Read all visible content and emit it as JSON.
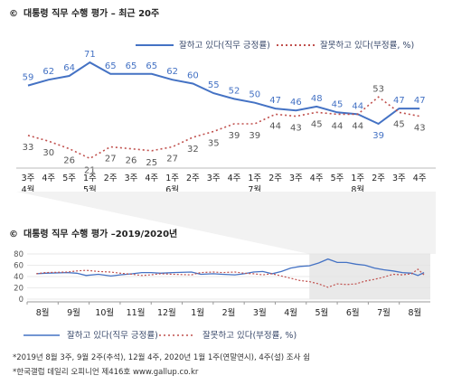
{
  "chart_data": [
    {
      "type": "line",
      "title": "대통령 직무 수행 평가 – 최근 20주",
      "title_marker": "©",
      "x": [
        "3주|4월",
        "4주",
        "5주",
        "1주|5월",
        "2주",
        "3주",
        "4주",
        "1주|6월",
        "2주",
        "3주",
        "4주",
        "1주|7월",
        "2주",
        "3주",
        "4주",
        "5주",
        "1주|8월",
        "2주",
        "3주",
        "4주"
      ],
      "series": [
        {
          "name": "잘하고 있다(직무 긍정률)",
          "color": "#4472c4",
          "style": "solid",
          "values": [
            59,
            62,
            64,
            71,
            65,
            65,
            65,
            62,
            60,
            55,
            52,
            50,
            47,
            46,
            48,
            45,
            44,
            39,
            47,
            47
          ]
        },
        {
          "name": "잘못하고 있다(부정률, %)",
          "color": "#c0504d",
          "style": "dotted",
          "values": [
            33,
            30,
            26,
            21,
            27,
            26,
            25,
            27,
            32,
            35,
            39,
            39,
            44,
            43,
            45,
            44,
            44,
            53,
            45,
            43
          ]
        }
      ],
      "ylim": [
        15,
        80
      ]
    },
    {
      "type": "line",
      "title": "대통령 직무 수행 평가 –2019/2020년",
      "title_marker": "©",
      "y_ticks": [
        0,
        20,
        40,
        60,
        80
      ],
      "ylim": [
        0,
        80
      ],
      "x_labels": [
        "8월",
        "9월",
        "10월",
        "11월",
        "12월",
        "1월",
        "2월",
        "3월",
        "4월",
        "5월",
        "6월",
        "7월",
        "8월"
      ],
      "highlight_region": "last 20 weeks",
      "series": [
        {
          "name": "잘하고 있다(직무 긍정률)",
          "color": "#4472c4",
          "style": "solid",
          "x": [
            0.3,
            0.6,
            1.3,
            1.6,
            1.9,
            2.3,
            2.7,
            3.0,
            3.4,
            3.7,
            4.0,
            4.3,
            4.7,
            5.3,
            5.6,
            6.0,
            6.3,
            6.7,
            7.0,
            7.3,
            7.6,
            7.9,
            8.2,
            8.5,
            8.8,
            9.1,
            9.4,
            9.7,
            10.0,
            10.3,
            10.6,
            10.9,
            11.2,
            11.5,
            11.8,
            12.1,
            12.4,
            12.6,
            12.8
          ],
          "values": [
            45,
            46,
            47,
            46,
            42,
            44,
            41,
            43,
            45,
            47,
            47,
            46,
            47,
            48,
            44,
            45,
            44,
            43,
            45,
            48,
            49,
            45,
            49,
            55,
            58,
            59,
            64,
            71,
            65,
            65,
            62,
            60,
            55,
            52,
            50,
            47,
            46,
            42,
            47
          ]
        },
        {
          "name": "잘못하고 있다(부정률, %)",
          "color": "#c0504d",
          "style": "dotted",
          "x": [
            0.3,
            0.6,
            1.3,
            1.6,
            1.9,
            2.3,
            2.7,
            3.0,
            3.4,
            3.7,
            4.0,
            4.3,
            4.7,
            5.3,
            5.6,
            6.0,
            6.3,
            6.7,
            7.0,
            7.3,
            7.6,
            7.9,
            8.2,
            8.5,
            8.8,
            9.1,
            9.4,
            9.7,
            10.0,
            10.3,
            10.6,
            10.9,
            11.2,
            11.5,
            11.8,
            12.1,
            12.4,
            12.6,
            12.8
          ],
          "values": [
            45,
            47,
            48,
            50,
            51,
            49,
            48,
            46,
            44,
            42,
            43,
            45,
            44,
            43,
            47,
            48,
            47,
            48,
            46,
            45,
            43,
            45,
            41,
            37,
            33,
            31,
            27,
            21,
            27,
            26,
            27,
            32,
            35,
            39,
            44,
            43,
            45,
            53,
            43
          ]
        }
      ]
    }
  ],
  "footnotes": [
    "*2019년 8월 3주, 9월 2주(추석), 12월 4주, 2020년 1월 1주(연말연시), 4주(설) 조사 쉼",
    "*한국갤럽 데일리 오피니언 제416호 www.gallup.co.kr"
  ]
}
